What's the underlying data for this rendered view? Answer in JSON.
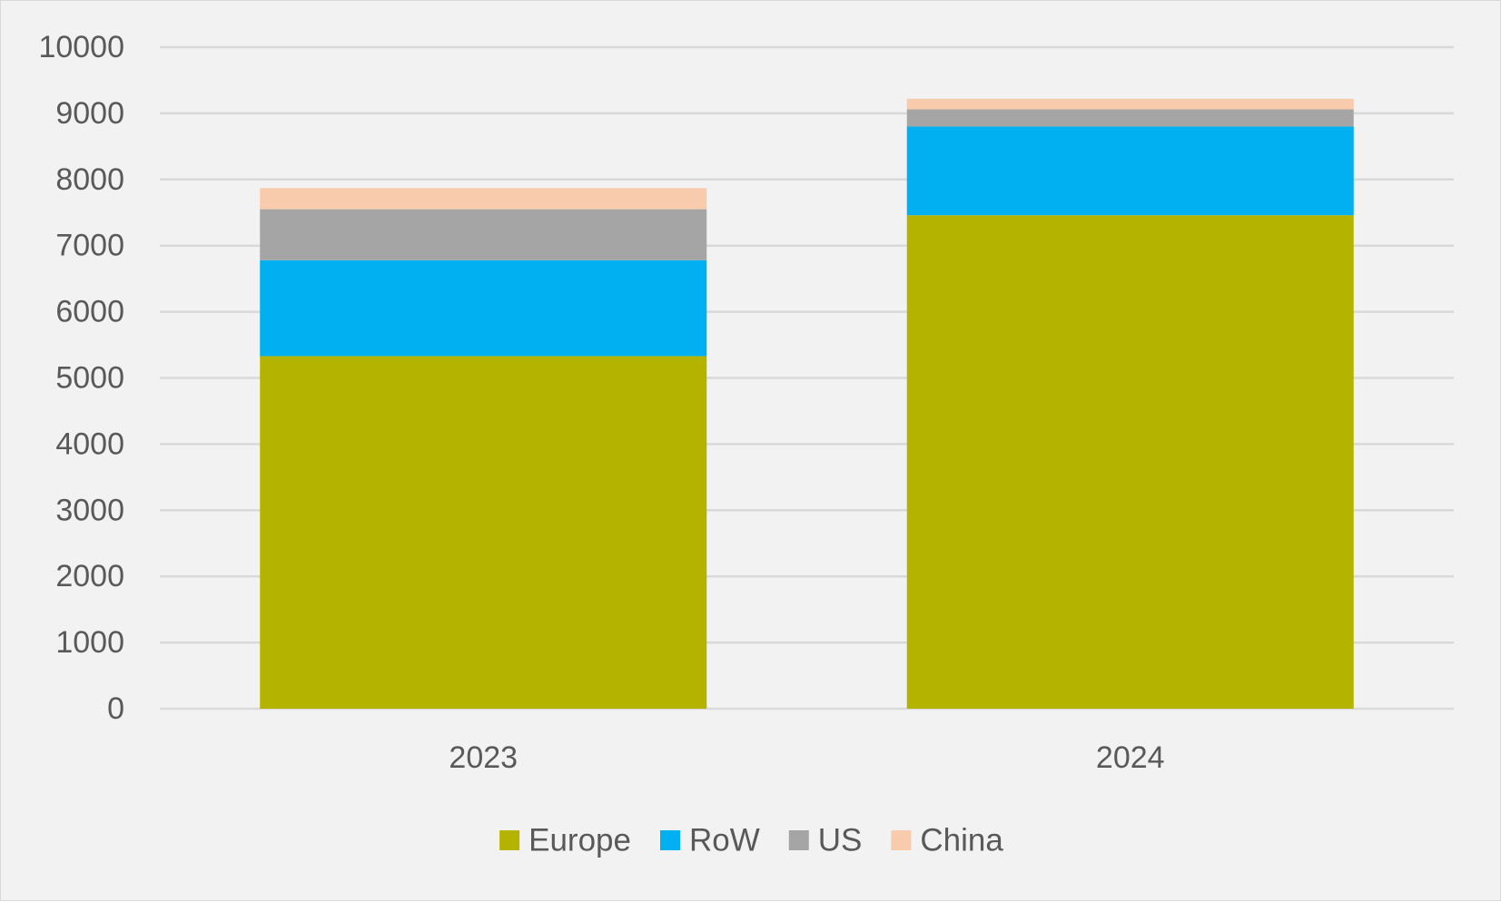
{
  "chart_data": {
    "type": "bar",
    "stacked": true,
    "categories": [
      "2023",
      "2024"
    ],
    "series": [
      {
        "name": "Europe",
        "color": "#b3b300",
        "values": [
          5330,
          7460
        ]
      },
      {
        "name": "RoW",
        "color": "#00b0f0",
        "values": [
          1450,
          1340
        ]
      },
      {
        "name": "US",
        "color": "#a5a5a5",
        "values": [
          770,
          260
        ]
      },
      {
        "name": "China",
        "color": "#f8cbad",
        "values": [
          320,
          160
        ]
      }
    ],
    "title": "",
    "xlabel": "",
    "ylabel": "",
    "ylim": [
      0,
      10000
    ],
    "yticks": [
      "0",
      "1000",
      "2000",
      "3000",
      "4000",
      "5000",
      "6000",
      "7000",
      "8000",
      "9000",
      "10000"
    ],
    "grid": true,
    "legend": "bottom"
  },
  "colors": {
    "background": "#f2f2f2",
    "gridline": "#d9d9d9",
    "text": "#595959"
  }
}
